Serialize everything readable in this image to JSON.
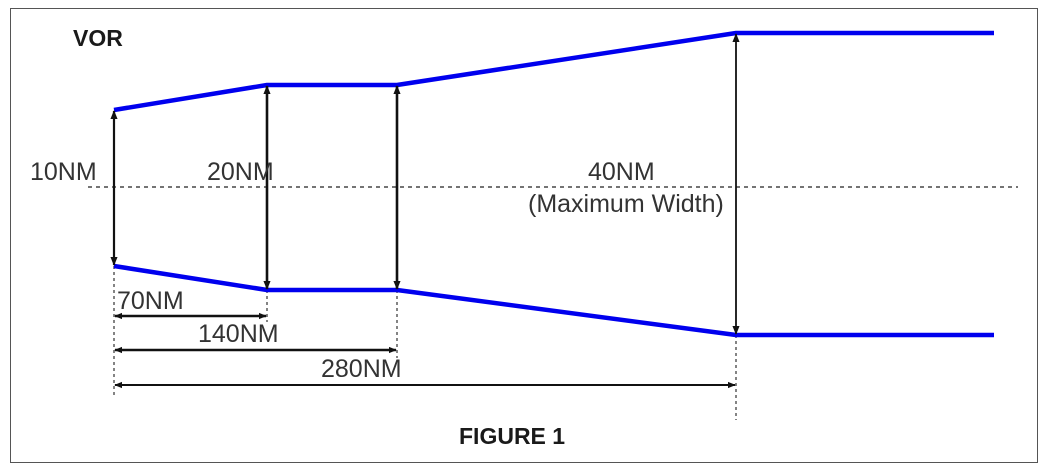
{
  "figure": {
    "station": "VOR",
    "caption": "FIGURE 1"
  },
  "widths": {
    "w10": "10NM",
    "w20": "20NM",
    "w40": "40NM",
    "w40_note": "(Maximum Width)"
  },
  "distances": {
    "d70": "70NM",
    "d140": "140NM",
    "d280": "280NM"
  },
  "colors": {
    "boundary": "#0000ee",
    "arrow": "#111111",
    "frame": "#555555"
  }
}
